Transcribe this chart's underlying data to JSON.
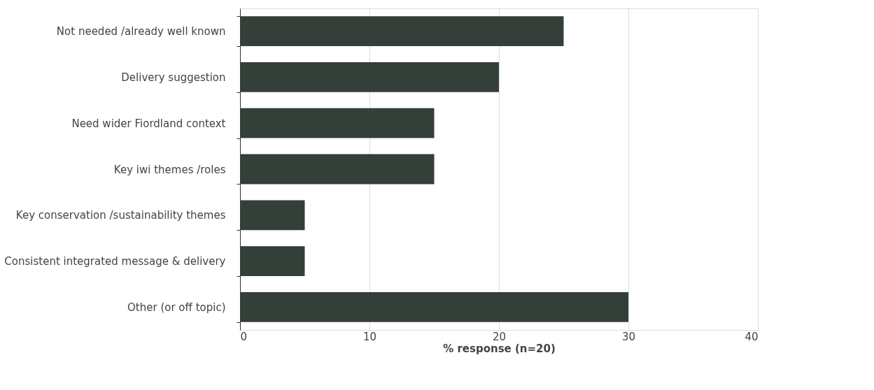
{
  "chart_data": {
    "type": "bar",
    "orientation": "horizontal",
    "xlabel": "% response (n=20)",
    "categories": [
      "Not needed /already well known",
      "Delivery suggestion",
      "Need wider Fiordland context",
      "Key iwi themes /roles",
      "Key conservation /sustainability themes",
      "Consistent integrated message & delivery",
      "Other (or off topic)"
    ],
    "values": [
      25,
      20,
      15,
      15,
      5,
      5,
      30
    ],
    "color": "#333f38",
    "xlim": [
      0,
      40
    ],
    "xticks": [
      0,
      10,
      20,
      30,
      40
    ],
    "grid": "x"
  }
}
